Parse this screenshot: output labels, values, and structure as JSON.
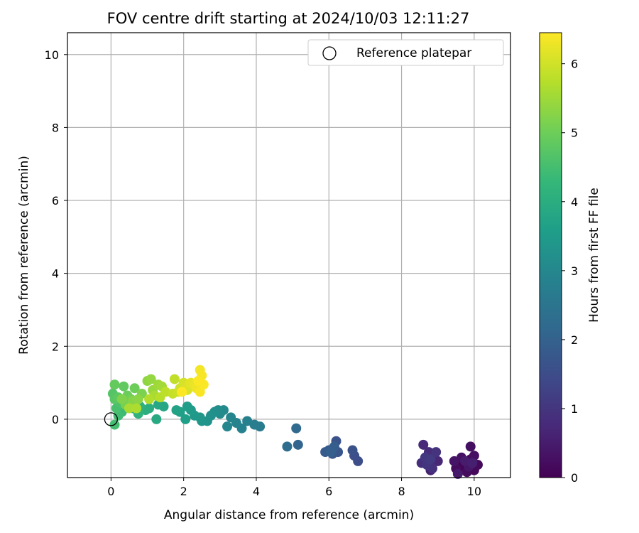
{
  "chart_data": {
    "type": "scatter",
    "title": "FOV centre drift starting at 2024/10/03 12:11:27",
    "xlabel": "Angular distance from reference (arcmin)",
    "ylabel": "Rotation from reference (arcmin)",
    "xlim": [
      -1.2,
      11.0
    ],
    "ylim": [
      -1.6,
      10.6
    ],
    "xticks": [
      0,
      2,
      4,
      6,
      8,
      10
    ],
    "yticks": [
      0,
      2,
      4,
      6,
      8,
      10
    ],
    "grid": true,
    "legend": {
      "placement": "top-right",
      "entries": [
        "Reference platepar"
      ]
    },
    "reference_point": {
      "x": 0.0,
      "y": 0.0
    },
    "colorbar": {
      "label": "Hours from first FF file",
      "range": [
        0,
        6.45
      ],
      "ticks": [
        0,
        1,
        2,
        3,
        4,
        5,
        6
      ],
      "colormap": "viridis"
    },
    "points": [
      {
        "x": 9.6,
        "y": -1.2,
        "h": 0.0
      },
      {
        "x": 9.7,
        "y": -1.3,
        "h": 0.05
      },
      {
        "x": 9.9,
        "y": -1.1,
        "h": 0.1
      },
      {
        "x": 10.0,
        "y": -1.4,
        "h": 0.12
      },
      {
        "x": 10.1,
        "y": -1.25,
        "h": 0.15
      },
      {
        "x": 9.8,
        "y": -1.45,
        "h": 0.18
      },
      {
        "x": 9.5,
        "y": -1.35,
        "h": 0.2
      },
      {
        "x": 9.9,
        "y": -0.75,
        "h": 0.25
      },
      {
        "x": 10.0,
        "y": -1.0,
        "h": 0.28
      },
      {
        "x": 9.65,
        "y": -1.05,
        "h": 0.3
      },
      {
        "x": 9.45,
        "y": -1.15,
        "h": 0.35
      },
      {
        "x": 9.85,
        "y": -1.3,
        "h": 0.4
      },
      {
        "x": 9.55,
        "y": -1.5,
        "h": 0.45
      },
      {
        "x": 9.75,
        "y": -1.15,
        "h": 0.5
      },
      {
        "x": 9.95,
        "y": -1.2,
        "h": 0.55
      },
      {
        "x": 8.8,
        "y": -1.4,
        "h": 0.6
      },
      {
        "x": 8.9,
        "y": -1.1,
        "h": 0.65
      },
      {
        "x": 9.0,
        "y": -1.15,
        "h": 0.7
      },
      {
        "x": 8.6,
        "y": -0.7,
        "h": 0.75
      },
      {
        "x": 8.75,
        "y": -0.9,
        "h": 0.8
      },
      {
        "x": 8.55,
        "y": -1.2,
        "h": 0.85
      },
      {
        "x": 8.85,
        "y": -1.35,
        "h": 0.9
      },
      {
        "x": 8.95,
        "y": -0.9,
        "h": 0.95
      },
      {
        "x": 8.7,
        "y": -1.25,
        "h": 1.0
      },
      {
        "x": 8.65,
        "y": -1.05,
        "h": 1.05
      },
      {
        "x": 8.8,
        "y": -1.1,
        "h": 1.1
      },
      {
        "x": 6.8,
        "y": -1.15,
        "h": 1.5
      },
      {
        "x": 6.7,
        "y": -1.0,
        "h": 1.55
      },
      {
        "x": 6.65,
        "y": -0.85,
        "h": 1.6
      },
      {
        "x": 6.2,
        "y": -0.6,
        "h": 1.65
      },
      {
        "x": 6.25,
        "y": -0.9,
        "h": 1.7
      },
      {
        "x": 6.1,
        "y": -0.95,
        "h": 1.75
      },
      {
        "x": 6.0,
        "y": -0.85,
        "h": 1.8
      },
      {
        "x": 5.9,
        "y": -0.9,
        "h": 1.85
      },
      {
        "x": 6.15,
        "y": -0.75,
        "h": 1.9
      },
      {
        "x": 6.05,
        "y": -0.9,
        "h": 1.95
      },
      {
        "x": 5.15,
        "y": -0.7,
        "h": 2.1
      },
      {
        "x": 5.1,
        "y": -0.25,
        "h": 2.2
      },
      {
        "x": 4.85,
        "y": -0.75,
        "h": 2.3
      },
      {
        "x": 4.1,
        "y": -0.2,
        "h": 2.7
      },
      {
        "x": 3.95,
        "y": -0.15,
        "h": 2.75
      },
      {
        "x": 3.75,
        "y": -0.05,
        "h": 2.8
      },
      {
        "x": 3.6,
        "y": -0.25,
        "h": 2.85
      },
      {
        "x": 3.45,
        "y": -0.1,
        "h": 2.9
      },
      {
        "x": 3.3,
        "y": 0.05,
        "h": 2.95
      },
      {
        "x": 3.2,
        "y": -0.2,
        "h": 3.0
      },
      {
        "x": 3.1,
        "y": 0.25,
        "h": 3.05
      },
      {
        "x": 3.0,
        "y": 0.15,
        "h": 3.1
      },
      {
        "x": 2.95,
        "y": 0.25,
        "h": 3.15
      },
      {
        "x": 2.85,
        "y": 0.2,
        "h": 3.2
      },
      {
        "x": 2.75,
        "y": 0.1,
        "h": 3.25
      },
      {
        "x": 2.65,
        "y": -0.05,
        "h": 3.3
      },
      {
        "x": 2.5,
        "y": -0.05,
        "h": 3.35
      },
      {
        "x": 2.45,
        "y": 0.05,
        "h": 3.4
      },
      {
        "x": 2.3,
        "y": 0.1,
        "h": 3.45
      },
      {
        "x": 2.2,
        "y": 0.25,
        "h": 3.5
      },
      {
        "x": 2.1,
        "y": 0.35,
        "h": 3.55
      },
      {
        "x": 2.05,
        "y": 0.0,
        "h": 3.6
      },
      {
        "x": 1.9,
        "y": 0.2,
        "h": 3.65
      },
      {
        "x": 1.8,
        "y": 0.25,
        "h": 3.7
      },
      {
        "x": 1.45,
        "y": 0.35,
        "h": 3.8
      },
      {
        "x": 1.3,
        "y": 0.4,
        "h": 3.85
      },
      {
        "x": 1.25,
        "y": 0.0,
        "h": 3.9
      },
      {
        "x": 1.05,
        "y": 0.3,
        "h": 4.0
      },
      {
        "x": 0.95,
        "y": 0.25,
        "h": 4.05
      },
      {
        "x": 0.8,
        "y": 0.35,
        "h": 4.1
      },
      {
        "x": 0.75,
        "y": 0.15,
        "h": 4.15
      },
      {
        "x": 0.6,
        "y": 0.3,
        "h": 4.2
      },
      {
        "x": 0.5,
        "y": 0.35,
        "h": 4.3
      },
      {
        "x": 0.3,
        "y": 0.2,
        "h": 4.4
      },
      {
        "x": 0.2,
        "y": 0.1,
        "h": 4.45
      },
      {
        "x": 0.1,
        "y": -0.15,
        "h": 4.5
      },
      {
        "x": 0.15,
        "y": 0.3,
        "h": 4.55
      },
      {
        "x": 0.25,
        "y": 0.45,
        "h": 4.6
      },
      {
        "x": 0.05,
        "y": 0.7,
        "h": 4.7
      },
      {
        "x": 0.1,
        "y": 0.55,
        "h": 4.75
      },
      {
        "x": 0.2,
        "y": 0.6,
        "h": 4.8
      },
      {
        "x": 0.35,
        "y": 0.9,
        "h": 4.85
      },
      {
        "x": 0.1,
        "y": 0.95,
        "h": 4.9
      },
      {
        "x": 0.45,
        "y": 0.65,
        "h": 4.95
      },
      {
        "x": 0.65,
        "y": 0.85,
        "h": 5.0
      },
      {
        "x": 0.55,
        "y": 0.55,
        "h": 5.05
      },
      {
        "x": 0.4,
        "y": 0.4,
        "h": 5.1
      },
      {
        "x": 0.85,
        "y": 0.7,
        "h": 5.15
      },
      {
        "x": 0.3,
        "y": 0.55,
        "h": 5.2
      },
      {
        "x": 0.6,
        "y": 0.5,
        "h": 5.25
      },
      {
        "x": 0.75,
        "y": 0.55,
        "h": 5.3
      },
      {
        "x": 1.0,
        "y": 1.05,
        "h": 5.35
      },
      {
        "x": 1.1,
        "y": 1.1,
        "h": 5.4
      },
      {
        "x": 1.15,
        "y": 0.8,
        "h": 5.45
      },
      {
        "x": 1.3,
        "y": 0.95,
        "h": 5.5
      },
      {
        "x": 1.4,
        "y": 0.9,
        "h": 5.55
      },
      {
        "x": 1.2,
        "y": 0.65,
        "h": 5.6
      },
      {
        "x": 0.5,
        "y": 0.3,
        "h": 5.62
      },
      {
        "x": 0.7,
        "y": 0.3,
        "h": 5.65
      },
      {
        "x": 1.05,
        "y": 0.55,
        "h": 5.7
      },
      {
        "x": 1.35,
        "y": 0.6,
        "h": 5.75
      },
      {
        "x": 1.5,
        "y": 0.75,
        "h": 5.8
      },
      {
        "x": 1.75,
        "y": 1.1,
        "h": 5.85
      },
      {
        "x": 1.7,
        "y": 0.7,
        "h": 5.9
      },
      {
        "x": 1.85,
        "y": 0.75,
        "h": 5.95
      },
      {
        "x": 1.9,
        "y": 0.85,
        "h": 6.0
      },
      {
        "x": 2.0,
        "y": 1.0,
        "h": 6.05
      },
      {
        "x": 2.05,
        "y": 0.85,
        "h": 6.08
      },
      {
        "x": 2.1,
        "y": 0.8,
        "h": 6.1
      },
      {
        "x": 2.15,
        "y": 0.95,
        "h": 6.15
      },
      {
        "x": 2.2,
        "y": 1.0,
        "h": 6.2
      },
      {
        "x": 2.3,
        "y": 0.95,
        "h": 6.25
      },
      {
        "x": 2.35,
        "y": 0.85,
        "h": 6.3
      },
      {
        "x": 2.45,
        "y": 1.35,
        "h": 6.35
      },
      {
        "x": 2.5,
        "y": 1.2,
        "h": 6.38
      },
      {
        "x": 2.45,
        "y": 0.75,
        "h": 6.4
      },
      {
        "x": 2.55,
        "y": 0.95,
        "h": 6.42
      },
      {
        "x": 2.4,
        "y": 1.05,
        "h": 6.43
      },
      {
        "x": 1.95,
        "y": 0.75,
        "h": 6.44
      }
    ]
  }
}
